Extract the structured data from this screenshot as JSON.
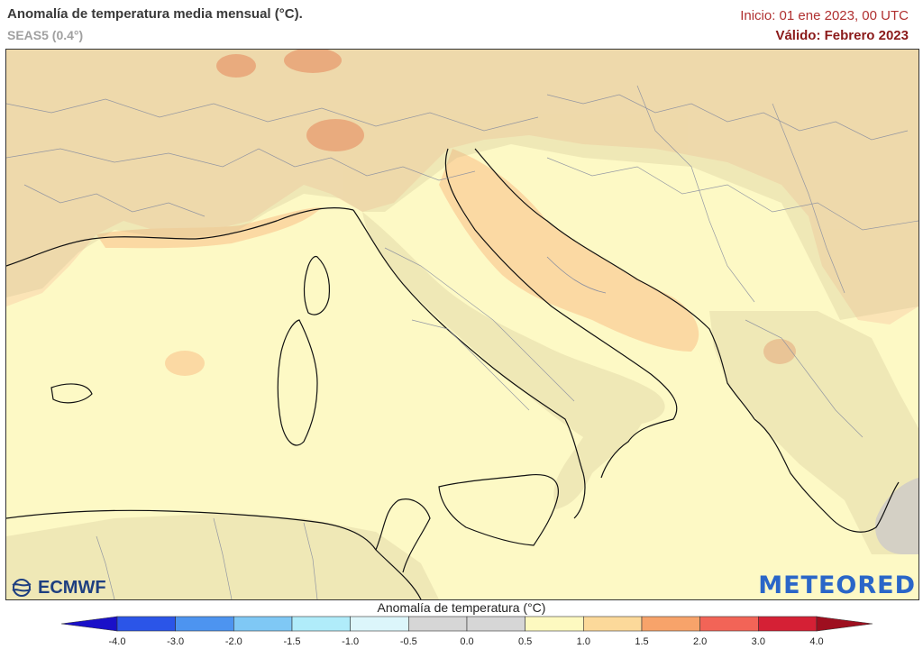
{
  "header": {
    "title": "Anomalía de temperatura media mensual (°C).",
    "subtitle": "SEAS5 (0.4°)",
    "init": "Inicio: 01 ene 2023, 00 UTC",
    "valid": "Válido: Febrero 2023"
  },
  "map": {
    "region": "Central Mediterranean: Italy, Balkans, Alps, North Africa",
    "dominant_anomaly_range": "0.5 to 1.0",
    "secondary_anomaly_range": "1.0 to 1.5",
    "local_max_range": "1.5 to 2.0",
    "neutral_area_range": "-0.5 to 0.5"
  },
  "logos": {
    "left": "ECMWF",
    "right": "METEORED"
  },
  "legend": {
    "title": "Anomalía de temperatura (°C)",
    "ticks": [
      "-4.0",
      "-3.0",
      "-2.0",
      "-1.5",
      "-1.0",
      "-0.5",
      "0.0",
      "0.5",
      "1.0",
      "1.5",
      "2.0",
      "3.0",
      "4.0"
    ],
    "colors": [
      "#1a10c8",
      "#2b55e8",
      "#4d94f0",
      "#7fc8f5",
      "#b0ecfa",
      "#dcf6fb",
      "#d6d6d6",
      "#d6d6d6",
      "#fdf9c0",
      "#fcd99a",
      "#f7a36a",
      "#f26457",
      "#d52035",
      "#9e0f1f"
    ]
  }
}
